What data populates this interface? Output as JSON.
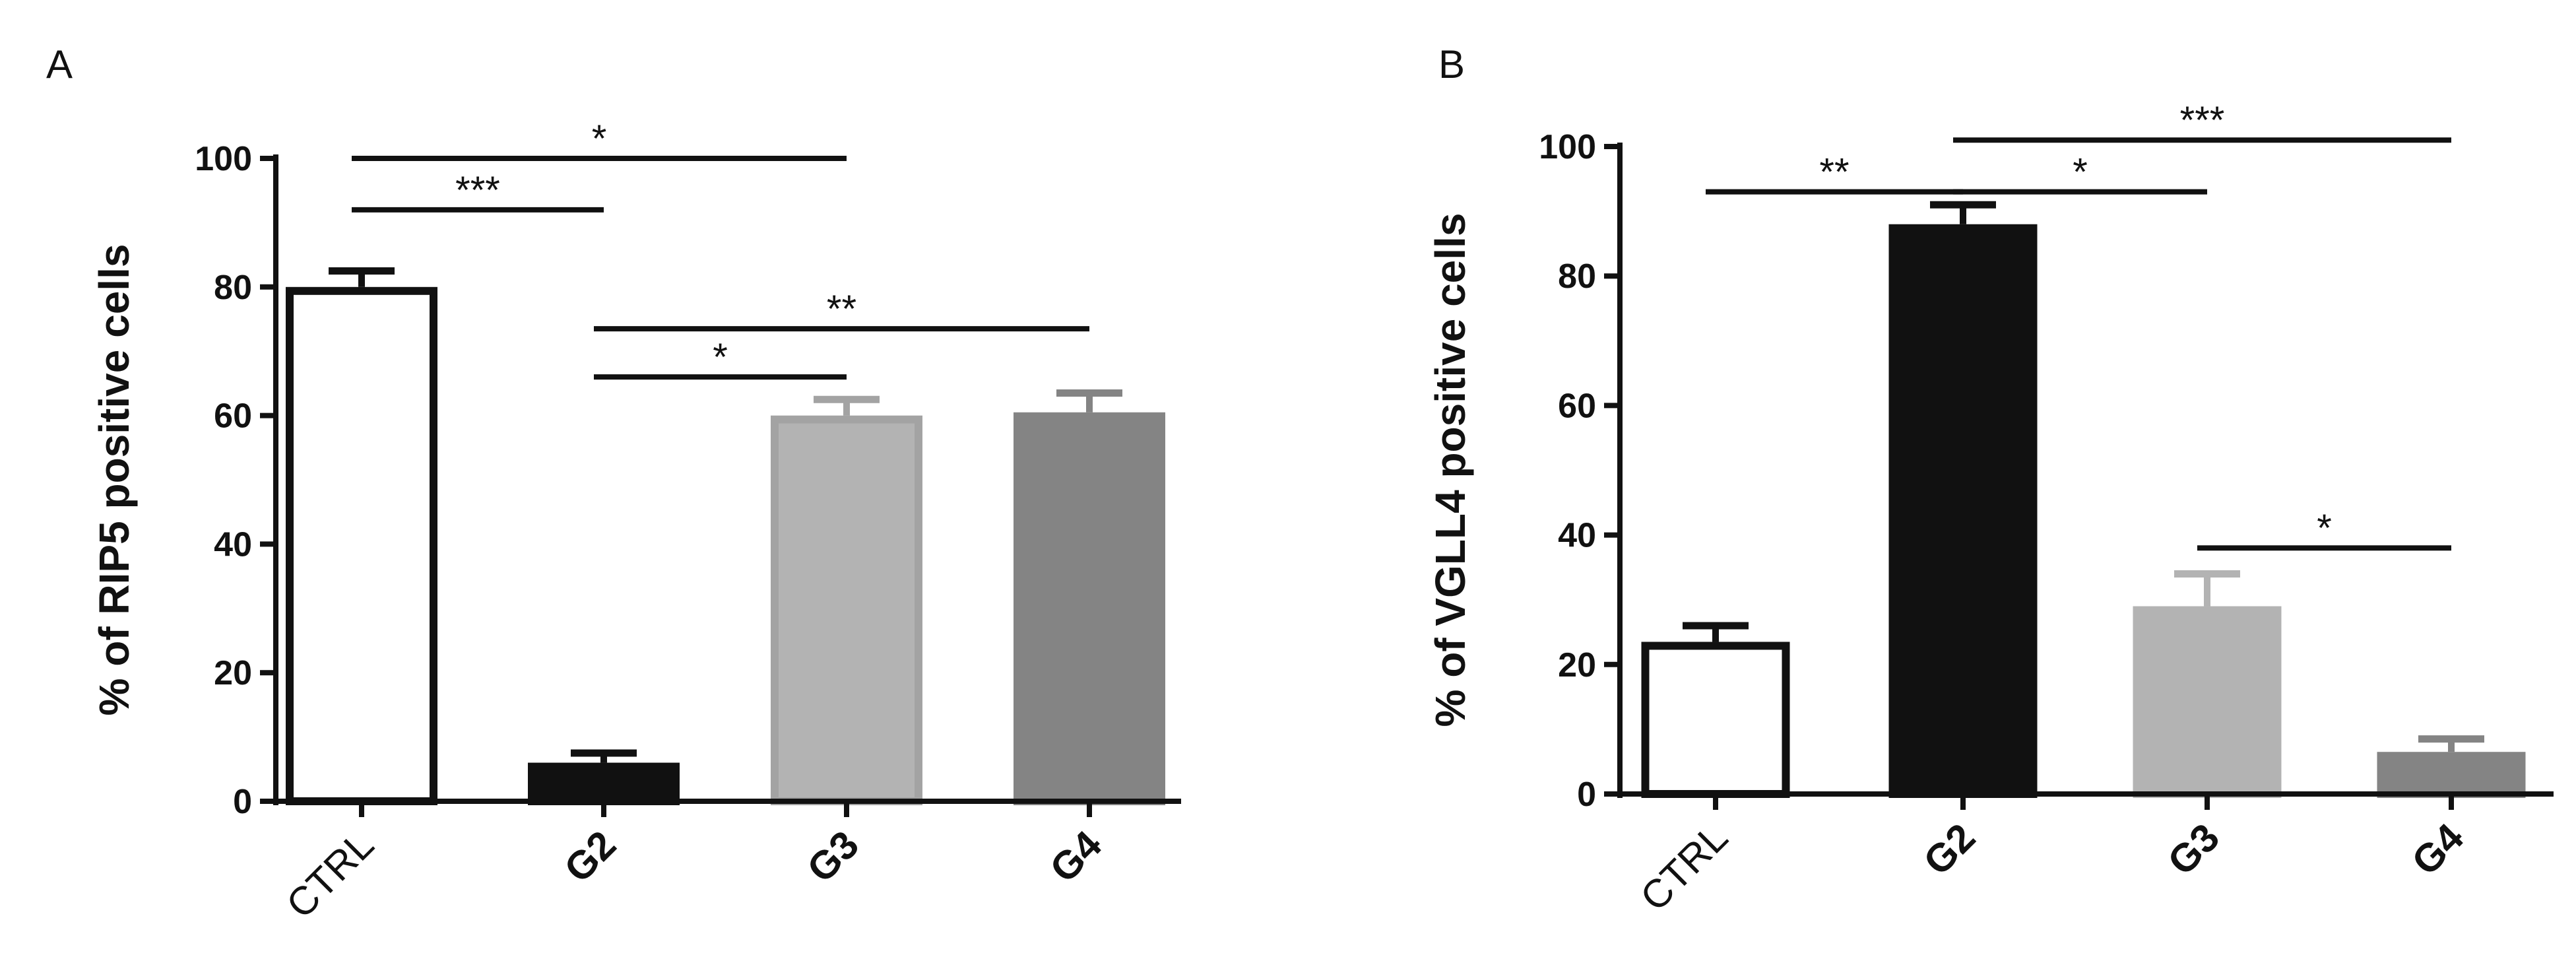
{
  "chart_data": [
    {
      "panel_label": "A",
      "type": "bar",
      "ylabel": "% of RIP5 positive cells",
      "ylim": [
        0,
        100
      ],
      "yticks": [
        0,
        20,
        40,
        60,
        80,
        100
      ],
      "categories": [
        "CTRL",
        "G2",
        "G3",
        "G4"
      ],
      "category_bold": [
        false,
        true,
        true,
        true
      ],
      "values": [
        80,
        6,
        60,
        60.5
      ],
      "errors": [
        2.5,
        1.5,
        2.5,
        3
      ],
      "bar_fill": [
        "#ffffff",
        "#111111",
        "#b3b3b3",
        "#848484"
      ],
      "bar_stroke": [
        "#111111",
        "#111111",
        "#a3a3a3",
        "#848484"
      ],
      "significance": [
        {
          "from": "CTRL",
          "to": "G3",
          "y": 100,
          "label": "*"
        },
        {
          "from": "CTRL",
          "to": "G2",
          "y": 92,
          "label": "***"
        },
        {
          "from": "G2",
          "to": "G4",
          "y": 73.5,
          "label": "**"
        },
        {
          "from": "G2",
          "to": "G3",
          "y": 66,
          "label": "*"
        }
      ]
    },
    {
      "panel_label": "B",
      "type": "bar",
      "ylabel": "% of VGLL4 positive cells",
      "ylim": [
        0,
        100
      ],
      "yticks": [
        0,
        20,
        40,
        60,
        80,
        100
      ],
      "categories": [
        "CTRL",
        "G2",
        "G3",
        "G4"
      ],
      "category_bold": [
        false,
        true,
        true,
        true
      ],
      "values": [
        23.5,
        88,
        29,
        6.5
      ],
      "errors": [
        2.5,
        3,
        5,
        2
      ],
      "bar_fill": [
        "#ffffff",
        "#111111",
        "#b3b3b3",
        "#848484"
      ],
      "bar_stroke": [
        "#111111",
        "#111111",
        "#b3b3b3",
        "#848484"
      ],
      "significance": [
        {
          "from": "CTRL",
          "to": "G2",
          "y": 93,
          "label": "**"
        },
        {
          "from": "G2",
          "to": "G3",
          "y": 93,
          "label": "*"
        },
        {
          "from": "G2",
          "to": "G4",
          "y": 101,
          "label": "***"
        },
        {
          "from": "G3",
          "to": "G4",
          "y": 38,
          "label": "*"
        }
      ]
    }
  ]
}
